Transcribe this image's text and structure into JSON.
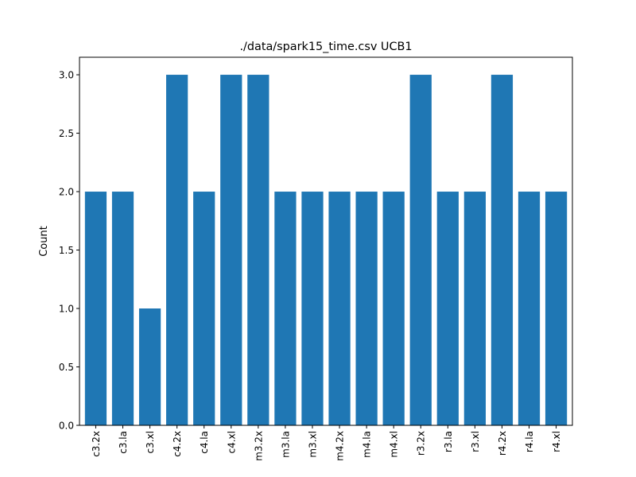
{
  "chart_data": {
    "type": "bar",
    "title": "./data/spark15_time.csv UCB1",
    "xlabel": "",
    "ylabel": "Count",
    "categories": [
      "c3.2x",
      "c3.la",
      "c3.xl",
      "c4.2x",
      "c4.la",
      "c4.xl",
      "m3.2x",
      "m3.la",
      "m3.xl",
      "m4.2x",
      "m4.la",
      "m4.xl",
      "r3.2x",
      "r3.la",
      "r3.xl",
      "r4.2x",
      "r4.la",
      "r4.xl"
    ],
    "values": [
      2,
      2,
      1,
      3,
      2,
      3,
      3,
      2,
      2,
      2,
      2,
      2,
      3,
      2,
      2,
      3,
      2,
      2
    ],
    "ylim": [
      0,
      3.15
    ],
    "yticks": [
      "0.0",
      "0.5",
      "1.0",
      "1.5",
      "2.0",
      "2.5",
      "3.0"
    ],
    "grid": false,
    "colors": {
      "bar": "#1f77b4"
    }
  }
}
